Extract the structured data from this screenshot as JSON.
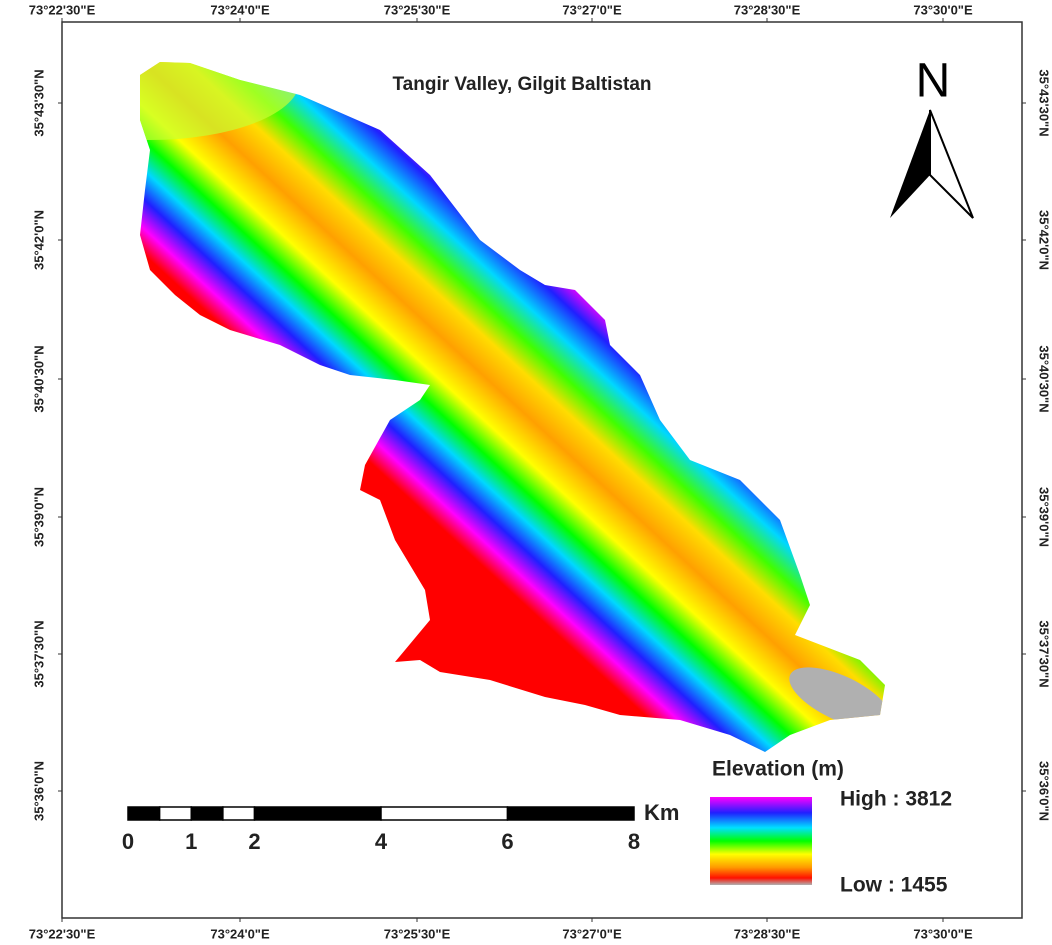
{
  "title": "Tangir Valley, Gilgit Baltistan",
  "longitudes": [
    "73°22'30\"E",
    "73°24'0\"E",
    "73°25'30\"E",
    "73°27'0\"E",
    "73°28'30\"E",
    "73°30'0\"E"
  ],
  "latitudes": [
    "35°43'30\"N",
    "35°42'0\"N",
    "35°40'30\"N",
    "35°39'0\"N",
    "35°37'30\"N",
    "35°36'0\"N"
  ],
  "north_arrow": "N",
  "scale_bar": {
    "unit": "Km",
    "labels": [
      "0",
      "1",
      "2",
      "4",
      "6",
      "8"
    ]
  },
  "legend": {
    "title": "Elevation (m)",
    "high": "High : 3812",
    "low": "Low : 1455"
  }
}
